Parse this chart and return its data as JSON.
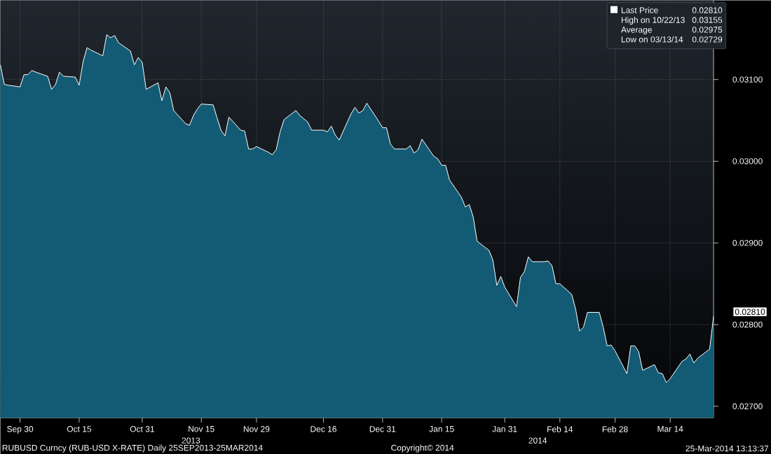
{
  "chart_data": {
    "type": "area",
    "x": [
      "2013-09-25",
      "2013-09-26",
      "2013-09-27",
      "2013-09-30",
      "2013-10-01",
      "2013-10-02",
      "2013-10-03",
      "2013-10-04",
      "2013-10-07",
      "2013-10-08",
      "2013-10-09",
      "2013-10-10",
      "2013-10-11",
      "2013-10-14",
      "2013-10-15",
      "2013-10-16",
      "2013-10-17",
      "2013-10-18",
      "2013-10-21",
      "2013-10-22",
      "2013-10-23",
      "2013-10-24",
      "2013-10-25",
      "2013-10-28",
      "2013-10-29",
      "2013-10-30",
      "2013-10-31",
      "2013-11-01",
      "2013-11-04",
      "2013-11-05",
      "2013-11-06",
      "2013-11-07",
      "2013-11-08",
      "2013-11-11",
      "2013-11-12",
      "2013-11-13",
      "2013-11-14",
      "2013-11-15",
      "2013-11-18",
      "2013-11-19",
      "2013-11-20",
      "2013-11-21",
      "2013-11-22",
      "2013-11-25",
      "2013-11-26",
      "2013-11-27",
      "2013-11-28",
      "2013-11-29",
      "2013-12-02",
      "2013-12-03",
      "2013-12-04",
      "2013-12-05",
      "2013-12-06",
      "2013-12-09",
      "2013-12-10",
      "2013-12-11",
      "2013-12-12",
      "2013-12-13",
      "2013-12-16",
      "2013-12-17",
      "2013-12-18",
      "2013-12-19",
      "2013-12-20",
      "2013-12-23",
      "2013-12-24",
      "2013-12-25",
      "2013-12-26",
      "2013-12-27",
      "2013-12-30",
      "2013-12-31",
      "2014-01-01",
      "2014-01-02",
      "2014-01-03",
      "2014-01-06",
      "2014-01-07",
      "2014-01-08",
      "2014-01-09",
      "2014-01-10",
      "2014-01-13",
      "2014-01-14",
      "2014-01-15",
      "2014-01-16",
      "2014-01-17",
      "2014-01-20",
      "2014-01-21",
      "2014-01-22",
      "2014-01-23",
      "2014-01-24",
      "2014-01-27",
      "2014-01-28",
      "2014-01-29",
      "2014-01-30",
      "2014-01-31",
      "2014-02-03",
      "2014-02-04",
      "2014-02-05",
      "2014-02-06",
      "2014-02-07",
      "2014-02-10",
      "2014-02-11",
      "2014-02-12",
      "2014-02-13",
      "2014-02-14",
      "2014-02-17",
      "2014-02-18",
      "2014-02-19",
      "2014-02-20",
      "2014-02-21",
      "2014-02-24",
      "2014-02-25",
      "2014-02-26",
      "2014-02-27",
      "2014-02-28",
      "2014-03-03",
      "2014-03-04",
      "2014-03-05",
      "2014-03-06",
      "2014-03-07",
      "2014-03-10",
      "2014-03-11",
      "2014-03-12",
      "2014-03-13",
      "2014-03-14",
      "2014-03-17",
      "2014-03-18",
      "2014-03-19",
      "2014-03-20",
      "2014-03-21",
      "2014-03-24",
      "2014-03-25"
    ],
    "series": [
      {
        "name": "Last Price",
        "color": "#ffffff",
        "values": [
          0.03118,
          0.03094,
          0.03093,
          0.03091,
          0.03106,
          0.03106,
          0.03111,
          0.03109,
          0.03104,
          0.03088,
          0.03094,
          0.03109,
          0.03104,
          0.03103,
          0.03093,
          0.03122,
          0.03139,
          0.03136,
          0.03129,
          0.03155,
          0.03151,
          0.03154,
          0.03145,
          0.03135,
          0.03118,
          0.03127,
          0.03121,
          0.03088,
          0.03096,
          0.03074,
          0.03091,
          0.03084,
          0.03062,
          0.03046,
          0.03044,
          0.03056,
          0.03064,
          0.0307,
          0.03069,
          0.03053,
          0.03038,
          0.03031,
          0.03054,
          0.03038,
          0.03037,
          0.03015,
          0.03015,
          0.03018,
          0.03011,
          0.03008,
          0.03014,
          0.03036,
          0.03051,
          0.03062,
          0.03056,
          0.03052,
          0.03048,
          0.03038,
          0.03038,
          0.03036,
          0.03043,
          0.03032,
          0.03026,
          0.03058,
          0.03066,
          0.03059,
          0.03062,
          0.03071,
          0.03049,
          0.03041,
          0.03041,
          0.03021,
          0.03015,
          0.03015,
          0.03019,
          0.0301,
          0.03014,
          0.03027,
          0.03006,
          0.03003,
          0.02995,
          0.02995,
          0.02977,
          0.02956,
          0.02944,
          0.02947,
          0.02932,
          0.02902,
          0.02891,
          0.02879,
          0.02848,
          0.02859,
          0.02846,
          0.02822,
          0.02858,
          0.02865,
          0.02883,
          0.02877,
          0.02877,
          0.02878,
          0.02872,
          0.0285,
          0.0285,
          0.02837,
          0.02819,
          0.02792,
          0.02797,
          0.02815,
          0.02815,
          0.02797,
          0.02774,
          0.02775,
          0.02768,
          0.0274,
          0.02774,
          0.02774,
          0.02767,
          0.02744,
          0.02751,
          0.02741,
          0.0274,
          0.02729,
          0.02734,
          0.02755,
          0.02758,
          0.02764,
          0.02753,
          0.02759,
          0.0277,
          0.0281
        ]
      }
    ],
    "xlim": [
      "2013-09-25",
      "2014-03-25"
    ],
    "xticks": [
      {
        "value": "2013-09-30",
        "label": "Sep 30"
      },
      {
        "value": "2013-10-15",
        "label": "Oct 15"
      },
      {
        "value": "2013-10-31",
        "label": "Oct 31"
      },
      {
        "value": "2013-11-15",
        "label": "Nov 15"
      },
      {
        "value": "2013-11-29",
        "label": "Nov 29"
      },
      {
        "value": "2013-12-16",
        "label": "Dec 16"
      },
      {
        "value": "2013-12-31",
        "label": "Dec 31"
      },
      {
        "value": "2014-01-15",
        "label": "Jan 15"
      },
      {
        "value": "2014-01-31",
        "label": "Jan 31"
      },
      {
        "value": "2014-02-14",
        "label": "Feb 14"
      },
      {
        "value": "2014-02-28",
        "label": "Feb 28"
      },
      {
        "value": "2014-03-14",
        "label": "Mar 14"
      }
    ],
    "ylim": [
      0.02686,
      0.03197
    ],
    "yticks": [
      {
        "value": 0.027,
        "label": "0.02700"
      },
      {
        "value": 0.028,
        "label": "0.02800"
      },
      {
        "value": 0.029,
        "label": "0.02900"
      },
      {
        "value": 0.03,
        "label": "0.03000"
      },
      {
        "value": 0.031,
        "label": "0.03100"
      }
    ],
    "grid": true,
    "legend": "top right",
    "annotations": [
      "0.02810",
      "High on 10/22/13",
      "0.03155",
      "Average",
      "0.02975",
      "Low on 03/13/14",
      "0.02729",
      {
        "text": "0.02810",
        "x": "2014-03-25",
        "y": 0.0281
      },
      "2013",
      "2014",
      "RUBUSD Curncy (RUB-USD X-RATE)  Daily 25SEP2013-25MAR2014",
      "Copyright© 2014",
      "25-Mar-2014 13:13:37"
    ]
  }
}
